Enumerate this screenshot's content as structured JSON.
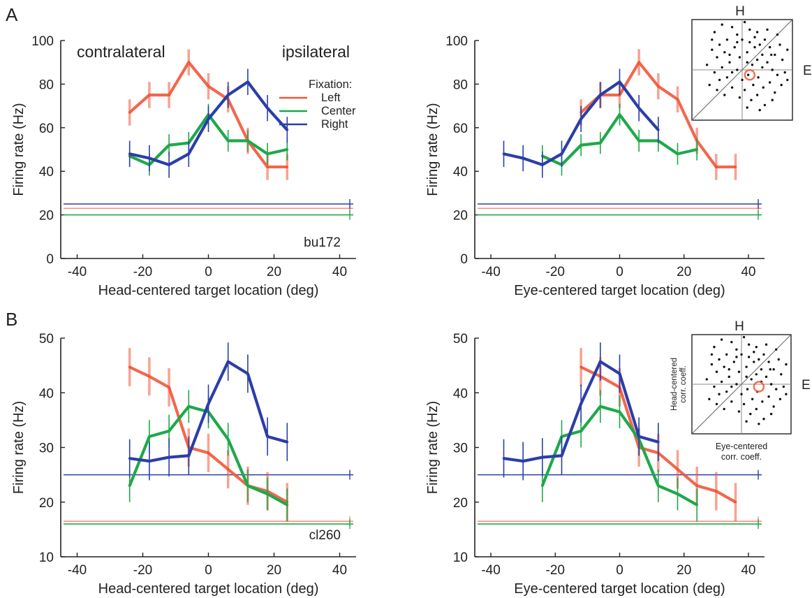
{
  "figure": {
    "panel_labels": [
      "A",
      "B"
    ],
    "colors": {
      "Left": "#f0583a",
      "Center": "#1fa84a",
      "Right": "#2b3ea8",
      "axis": "#222222"
    }
  },
  "legend": {
    "title": "Fixation:",
    "items": [
      "Left",
      "Center",
      "Right"
    ]
  },
  "chart_data": [
    {
      "type": "line",
      "panel": "A",
      "xlabel": "Head-centered target location (deg)",
      "ylabel": "Firing rate (Hz)",
      "xlim": [
        -45,
        45
      ],
      "ylim": [
        0,
        100
      ],
      "xticks": [
        -40,
        -20,
        0,
        20,
        40
      ],
      "yticks": [
        0,
        20,
        40,
        60,
        80,
        100
      ],
      "annotations": [
        "contralateral",
        "ipsilateral"
      ],
      "cell_label": "bu172",
      "x": [
        -24,
        -18,
        -12,
        -6,
        0,
        6,
        12,
        18,
        24
      ],
      "series": [
        {
          "name": "Left",
          "values": [
            67,
            75,
            75,
            90,
            79,
            73,
            54,
            42,
            42
          ],
          "err": 6,
          "baseline": 23
        },
        {
          "name": "Center",
          "values": [
            47,
            43,
            52,
            53,
            66,
            54,
            54,
            48,
            50
          ],
          "err": 5,
          "baseline": 20
        },
        {
          "name": "Right",
          "values": [
            48,
            46,
            43,
            48,
            64,
            75,
            81,
            69,
            59
          ],
          "err": 6,
          "baseline": 25
        }
      ]
    },
    {
      "type": "line",
      "panel": "A",
      "xlabel": "Eye-centered target location (deg)",
      "ylabel": "Firing rate (Hz)",
      "xlim": [
        -45,
        45
      ],
      "ylim": [
        0,
        100
      ],
      "xticks": [
        -40,
        -20,
        0,
        20,
        40
      ],
      "yticks": [
        0,
        20,
        40,
        60,
        80,
        100
      ],
      "series": [
        {
          "name": "Left",
          "x": [
            -12,
            -6,
            0,
            6,
            12,
            18,
            24,
            30,
            36
          ],
          "values": [
            67,
            75,
            75,
            90,
            79,
            73,
            54,
            42,
            42
          ],
          "err": 6,
          "baseline": 23
        },
        {
          "name": "Center",
          "x": [
            -24,
            -18,
            -12,
            -6,
            0,
            6,
            12,
            18,
            24
          ],
          "values": [
            47,
            43,
            52,
            53,
            66,
            54,
            54,
            48,
            50
          ],
          "err": 5,
          "baseline": 20
        },
        {
          "name": "Right",
          "x": [
            -36,
            -30,
            -24,
            -18,
            -12,
            -6,
            0,
            6,
            12
          ],
          "values": [
            48,
            46,
            43,
            48,
            64,
            75,
            81,
            69,
            59
          ],
          "err": 6,
          "baseline": 25
        }
      ],
      "inset": {
        "type": "scatter",
        "labels": {
          "top": "H",
          "right": "E"
        },
        "points": [
          [
            -0.55,
            0.75
          ],
          [
            -0.4,
            0.9
          ],
          [
            -0.3,
            0.6
          ],
          [
            -0.2,
            0.85
          ],
          [
            -0.1,
            0.7
          ],
          [
            0.05,
            0.95
          ],
          [
            0.15,
            0.8
          ],
          [
            0.25,
            0.65
          ],
          [
            0.35,
            0.5
          ],
          [
            0.45,
            0.6
          ],
          [
            0.55,
            0.45
          ],
          [
            0.65,
            0.3
          ],
          [
            0.75,
            0.5
          ],
          [
            0.8,
            0.2
          ],
          [
            0.9,
            0.4
          ],
          [
            -0.6,
            0.4
          ],
          [
            -0.5,
            0.25
          ],
          [
            -0.45,
            0.5
          ],
          [
            -0.35,
            0.35
          ],
          [
            -0.25,
            0.15
          ],
          [
            -0.15,
            0.45
          ],
          [
            -0.05,
            0.25
          ],
          [
            0.1,
            0.35
          ],
          [
            0.2,
            0.1
          ],
          [
            0.3,
            0.2
          ],
          [
            0.4,
            0.05
          ],
          [
            0.5,
            0.15
          ],
          [
            0.6,
            0.0
          ],
          [
            0.7,
            -0.1
          ],
          [
            0.85,
            -0.05
          ],
          [
            -0.7,
            0.1
          ],
          [
            -0.55,
            -0.05
          ],
          [
            -0.4,
            0.05
          ],
          [
            -0.3,
            -0.15
          ],
          [
            -0.2,
            -0.05
          ],
          [
            -0.1,
            0.0
          ],
          [
            0.0,
            -0.2
          ],
          [
            0.12,
            -0.1
          ],
          [
            0.22,
            -0.3
          ],
          [
            0.32,
            -0.15
          ],
          [
            0.42,
            -0.35
          ],
          [
            0.55,
            -0.25
          ],
          [
            0.65,
            -0.45
          ],
          [
            0.78,
            -0.3
          ],
          [
            0.9,
            -0.2
          ],
          [
            -0.65,
            -0.3
          ],
          [
            -0.5,
            -0.4
          ],
          [
            -0.35,
            -0.5
          ],
          [
            -0.2,
            -0.35
          ],
          [
            -0.05,
            -0.55
          ],
          [
            0.05,
            -0.4
          ],
          [
            0.18,
            -0.6
          ],
          [
            0.3,
            -0.5
          ],
          [
            0.45,
            -0.7
          ],
          [
            0.6,
            -0.6
          ],
          [
            -0.1,
            0.55
          ],
          [
            0.0,
            0.6
          ],
          [
            0.15,
            0.55
          ],
          [
            0.3,
            0.75
          ],
          [
            0.5,
            0.8
          ],
          [
            -0.6,
            0.6
          ],
          [
            0.7,
            0.7
          ],
          [
            0.25,
            0.45
          ],
          [
            0.4,
            0.3
          ],
          [
            -0.25,
            0.3
          ],
          [
            0.1,
            0.15
          ],
          [
            0.58,
            0.3
          ],
          [
            -0.45,
            -0.2
          ],
          [
            0.35,
            -0.8
          ],
          [
            0.1,
            -0.75
          ]
        ],
        "highlight": [
          0.15,
          -0.1
        ]
      }
    },
    {
      "type": "line",
      "panel": "B",
      "xlabel": "Head-centered target location (deg)",
      "ylabel": "Firing rate (Hz)",
      "xlim": [
        -45,
        45
      ],
      "ylim": [
        10,
        50
      ],
      "xticks": [
        -40,
        -20,
        0,
        20,
        40
      ],
      "yticks": [
        10,
        20,
        30,
        40,
        50
      ],
      "cell_label": "cl260",
      "x": [
        -24,
        -18,
        -12,
        -6,
        0,
        6,
        12,
        18,
        24
      ],
      "series": [
        {
          "name": "Left",
          "values": [
            44.7,
            43,
            41,
            30,
            29,
            26,
            23,
            22,
            20
          ],
          "err": 3.5,
          "baseline": 16.5
        },
        {
          "name": "Center",
          "values": [
            23,
            32,
            33,
            37.5,
            36.5,
            31.5,
            23,
            21.5,
            19.5
          ],
          "err": 3,
          "baseline": 16
        },
        {
          "name": "Right",
          "values": [
            28,
            27.5,
            28.2,
            28.5,
            38,
            45.7,
            43.5,
            32,
            31
          ],
          "err": 3.5,
          "baseline": 25
        }
      ]
    },
    {
      "type": "line",
      "panel": "B",
      "xlabel": "Eye-centered target location (deg)",
      "ylabel": "Firing rate (Hz)",
      "xlim": [
        -45,
        45
      ],
      "ylim": [
        10,
        50
      ],
      "xticks": [
        -40,
        -20,
        0,
        20,
        40
      ],
      "yticks": [
        10,
        20,
        30,
        40,
        50
      ],
      "series": [
        {
          "name": "Left",
          "x": [
            -12,
            -6,
            0,
            6,
            12,
            18,
            24,
            30,
            36
          ],
          "values": [
            44.7,
            43,
            41,
            30,
            29,
            26,
            23,
            22,
            20
          ],
          "err": 3.5,
          "baseline": 16.5
        },
        {
          "name": "Center",
          "x": [
            -24,
            -18,
            -12,
            -6,
            0,
            6,
            12,
            18,
            24
          ],
          "values": [
            23,
            32,
            33,
            37.5,
            36.5,
            31.5,
            23,
            21.5,
            19.5
          ],
          "err": 3,
          "baseline": 16
        },
        {
          "name": "Right",
          "x": [
            -36,
            -30,
            -24,
            -18,
            -12,
            -6,
            0,
            6,
            12
          ],
          "values": [
            28,
            27.5,
            28.2,
            28.5,
            38,
            45.7,
            43.5,
            32,
            31
          ],
          "err": 3.5,
          "baseline": 25
        }
      ],
      "inset": {
        "type": "scatter",
        "labels": {
          "top": "H",
          "right": "E",
          "ylabel": "Head-centered corr. coeff.",
          "xlabel": "Eye-centered corr. coeff."
        },
        "points": [
          [
            -0.55,
            0.75
          ],
          [
            -0.4,
            0.9
          ],
          [
            -0.3,
            0.6
          ],
          [
            -0.2,
            0.85
          ],
          [
            -0.1,
            0.7
          ],
          [
            0.05,
            0.95
          ],
          [
            0.15,
            0.8
          ],
          [
            0.25,
            0.65
          ],
          [
            0.35,
            0.5
          ],
          [
            0.45,
            0.6
          ],
          [
            0.55,
            0.45
          ],
          [
            0.65,
            0.3
          ],
          [
            0.75,
            0.5
          ],
          [
            0.8,
            0.2
          ],
          [
            0.9,
            0.4
          ],
          [
            -0.6,
            0.4
          ],
          [
            -0.5,
            0.25
          ],
          [
            -0.45,
            0.5
          ],
          [
            -0.35,
            0.35
          ],
          [
            -0.25,
            0.15
          ],
          [
            -0.15,
            0.45
          ],
          [
            -0.05,
            0.25
          ],
          [
            0.1,
            0.35
          ],
          [
            0.2,
            0.1
          ],
          [
            0.3,
            0.2
          ],
          [
            0.4,
            0.05
          ],
          [
            0.5,
            0.15
          ],
          [
            0.6,
            0.0
          ],
          [
            0.7,
            -0.1
          ],
          [
            0.85,
            -0.05
          ],
          [
            -0.7,
            0.1
          ],
          [
            -0.55,
            -0.05
          ],
          [
            -0.4,
            0.05
          ],
          [
            -0.3,
            -0.15
          ],
          [
            -0.2,
            -0.05
          ],
          [
            -0.1,
            0.0
          ],
          [
            0.0,
            -0.2
          ],
          [
            0.12,
            -0.1
          ],
          [
            0.22,
            -0.3
          ],
          [
            0.32,
            -0.15
          ],
          [
            0.42,
            -0.35
          ],
          [
            0.55,
            -0.25
          ],
          [
            0.65,
            -0.45
          ],
          [
            0.78,
            -0.3
          ],
          [
            0.9,
            -0.2
          ],
          [
            -0.65,
            -0.3
          ],
          [
            -0.5,
            -0.4
          ],
          [
            -0.35,
            -0.5
          ],
          [
            -0.2,
            -0.35
          ],
          [
            -0.05,
            -0.55
          ],
          [
            0.05,
            -0.4
          ],
          [
            0.18,
            -0.6
          ],
          [
            0.3,
            -0.5
          ],
          [
            0.45,
            -0.7
          ],
          [
            0.6,
            -0.6
          ],
          [
            -0.1,
            0.55
          ],
          [
            0.0,
            0.6
          ],
          [
            0.15,
            0.55
          ],
          [
            0.3,
            0.75
          ],
          [
            0.5,
            0.8
          ],
          [
            -0.6,
            0.6
          ],
          [
            0.7,
            0.7
          ],
          [
            0.25,
            0.45
          ],
          [
            0.4,
            0.3
          ],
          [
            -0.25,
            0.3
          ],
          [
            0.1,
            0.15
          ],
          [
            0.58,
            0.3
          ],
          [
            -0.45,
            -0.2
          ],
          [
            0.35,
            -0.8
          ],
          [
            0.1,
            -0.75
          ]
        ],
        "highlight": [
          0.35,
          -0.05
        ]
      }
    }
  ]
}
